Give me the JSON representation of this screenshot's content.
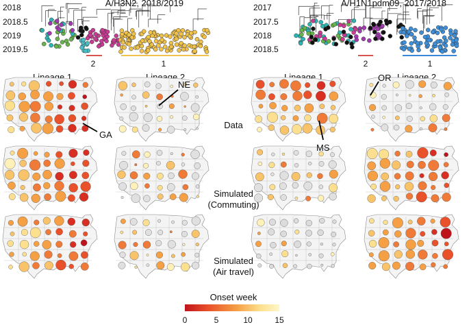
{
  "trees": [
    {
      "title": "A/H3N2, 2018/2019",
      "years": [
        "2018",
        "2018.5",
        "2019",
        "2019.5"
      ],
      "clades": [
        {
          "label": "2",
          "color": "#d9534f"
        },
        {
          "label": "1",
          "color": "#f0c14b"
        }
      ]
    },
    {
      "title": "A/H1N1pdm09, 2017/2018",
      "years": [
        "2017",
        "2017.5",
        "2018",
        "2018.5"
      ],
      "clades": [
        {
          "label": "2",
          "color": "#d9534f"
        },
        {
          "label": "1",
          "color": "#3a87d6"
        }
      ]
    }
  ],
  "columns": [
    "Lineage 1",
    "Lineage 2",
    "Lineage 1",
    "Lineage 2"
  ],
  "rows": [
    "Data",
    "Simulated\n(Commuting)",
    "Simulated\n(Air travel)"
  ],
  "state_labels": [
    "GA",
    "NE",
    "MS",
    "OR"
  ],
  "legend": {
    "title": "Onset week",
    "ticks": [
      "0",
      "5",
      "10",
      "15"
    ],
    "colors": [
      "#c0141c",
      "#e9512b",
      "#f5a045",
      "#fde08f",
      "#fff6c8"
    ]
  }
}
